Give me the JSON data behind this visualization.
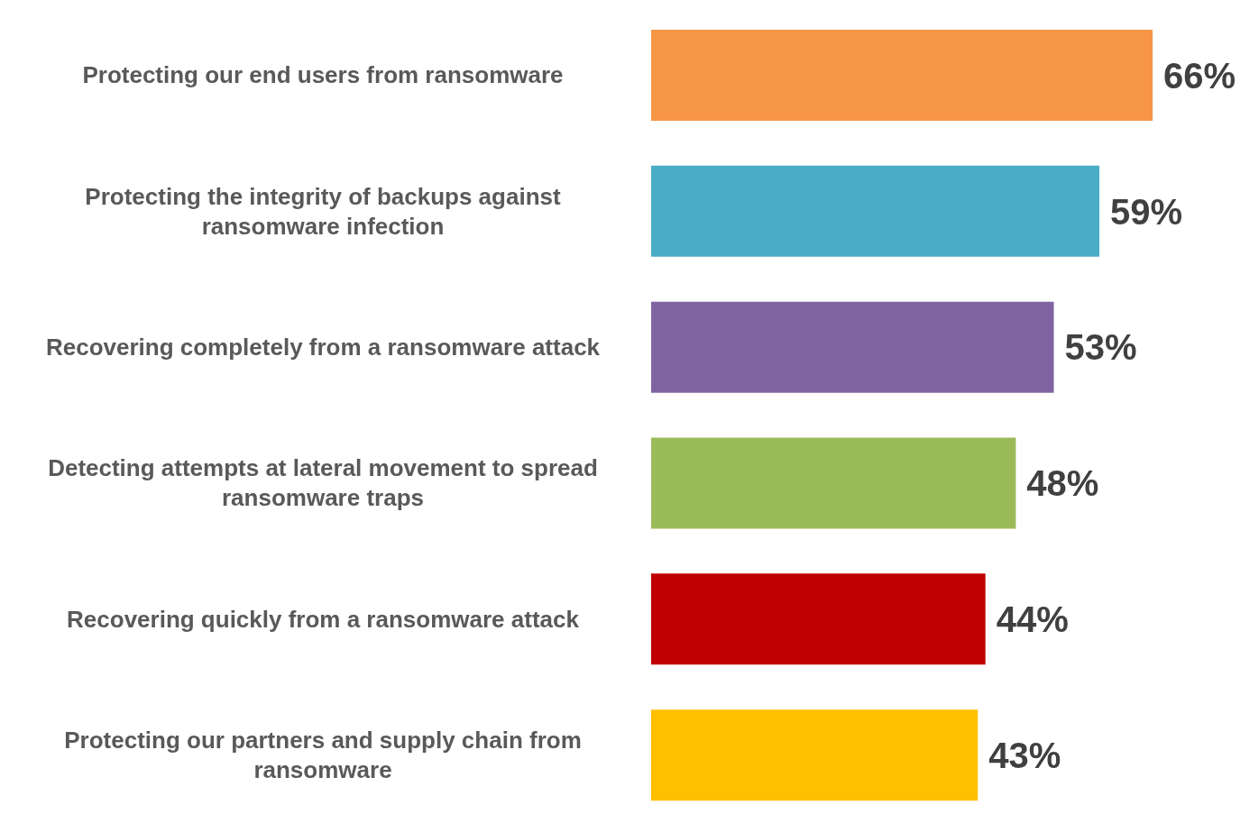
{
  "chart_data": {
    "type": "bar",
    "orientation": "horizontal",
    "categories": [
      "Protecting our end users from ransomware",
      "Protecting the integrity of backups against ransomware infection",
      "Recovering completely from a ransomware attack",
      "Detecting attempts at lateral movement to spread ransomware traps",
      "Recovering quickly from a ransomware attack",
      "Protecting our partners and supply chain from ransomware"
    ],
    "values": [
      66,
      59,
      53,
      48,
      44,
      43
    ],
    "colors": [
      "#f79646",
      "#4bacc6",
      "#8064a2",
      "#9bbb59",
      "#c00000",
      "#ffc000"
    ],
    "value_labels": [
      "66%",
      "59%",
      "53%",
      "48%",
      "44%",
      "43%"
    ],
    "grid": false,
    "legend": false
  }
}
